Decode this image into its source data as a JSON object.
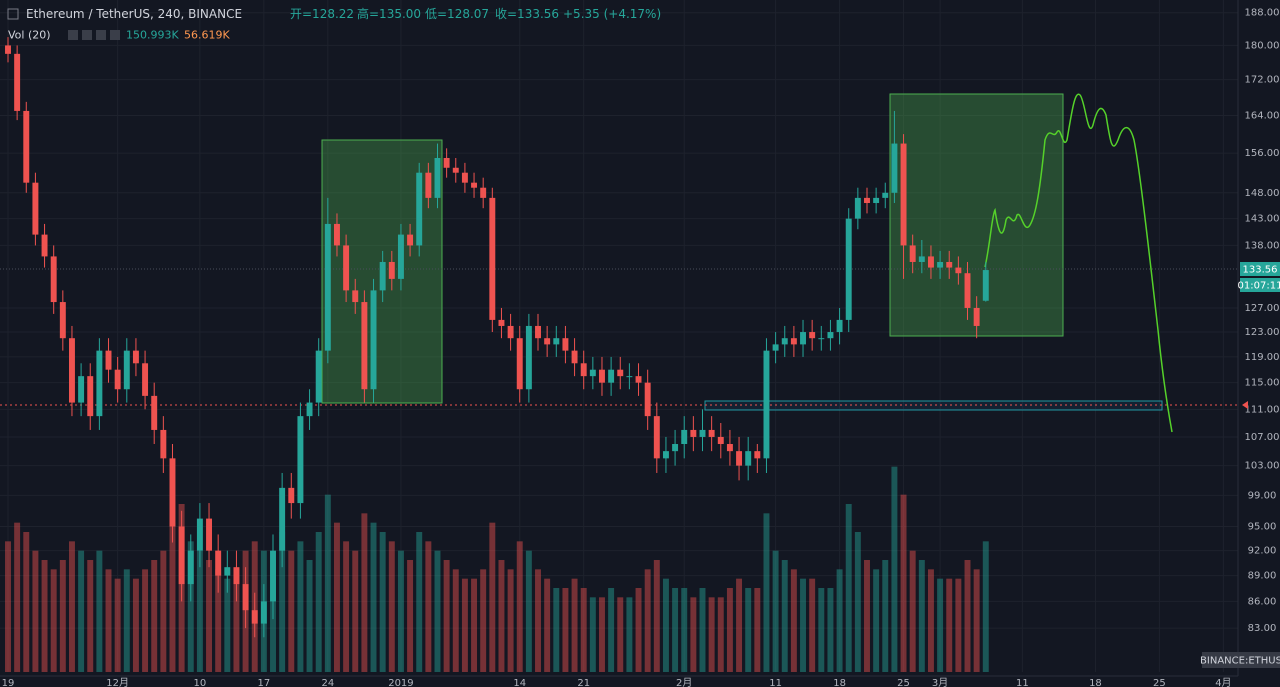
{
  "chart_data": {
    "type": "candlestick",
    "header": {
      "symbol": "Ethereum / TetherUS, 240, BINANCE",
      "open": "开=128.22",
      "high": "高=135.00",
      "low": "低=128.07",
      "close": "收=133.56",
      "change": "+5.35 (+4.17%)",
      "volume_label": "Vol (20)",
      "volume_value": "150.993K",
      "volume_ma": "56.619K",
      "countdown": "01:07:11",
      "exchange": "BINANCE:ETHUS"
    },
    "log_scale": true,
    "grid": true,
    "up_color": "#26a69a",
    "down_color": "#ef5350",
    "ylim": [
      78.3,
      191.2
    ],
    "yticks": [
      {
        "value": 188,
        "label": "188.00"
      },
      {
        "value": 180,
        "label": "180.00"
      },
      {
        "value": 172,
        "label": "172.00"
      },
      {
        "value": 164,
        "label": "164.00"
      },
      {
        "value": 156,
        "label": "156.00"
      },
      {
        "value": 148,
        "label": "148.00"
      },
      {
        "value": 143,
        "label": "143.00"
      },
      {
        "value": 138,
        "label": "138.00"
      },
      {
        "value": 127,
        "label": "127.00"
      },
      {
        "value": 123,
        "label": "123.00"
      },
      {
        "value": 119,
        "label": "119.00"
      },
      {
        "value": 115,
        "label": "115.00"
      },
      {
        "value": 111,
        "label": "111.00"
      },
      {
        "value": 107,
        "label": "107.00"
      },
      {
        "value": 103,
        "label": "103.00"
      },
      {
        "value": 99,
        "label": "99.00"
      },
      {
        "value": 95,
        "label": "95.00"
      },
      {
        "value": 92,
        "label": "92.00"
      },
      {
        "value": 89,
        "label": "89.00"
      },
      {
        "value": 86,
        "label": "86.00"
      },
      {
        "value": 83,
        "label": "83.00"
      }
    ],
    "xlim": [
      -0.875,
      134.6
    ],
    "xticks": [
      {
        "value": 0,
        "label": "19"
      },
      {
        "value": 12,
        "label": "12月"
      },
      {
        "value": 21,
        "label": "10"
      },
      {
        "value": 28,
        "label": "17"
      },
      {
        "value": 35,
        "label": "24"
      },
      {
        "value": 43,
        "label": "2019"
      },
      {
        "value": 56,
        "label": "14"
      },
      {
        "value": 63,
        "label": "21"
      },
      {
        "value": 74,
        "label": "2月"
      },
      {
        "value": 84,
        "label": "11"
      },
      {
        "value": 91,
        "label": "18"
      },
      {
        "value": 98,
        "label": "25"
      },
      {
        "value": 102,
        "label": "3月"
      },
      {
        "value": 111,
        "label": "11"
      },
      {
        "value": 119,
        "label": "18"
      },
      {
        "value": 126,
        "label": "25"
      },
      {
        "value": 133,
        "label": "4月"
      }
    ],
    "x": [
      0,
      1,
      2,
      3,
      4,
      5,
      6,
      7,
      8,
      9,
      10,
      11,
      12,
      13,
      14,
      15,
      16,
      17,
      18,
      19,
      20,
      21,
      22,
      23,
      24,
      25,
      26,
      27,
      28,
      29,
      30,
      31,
      32,
      33,
      34,
      35,
      36,
      37,
      38,
      39,
      40,
      41,
      42,
      43,
      44,
      45,
      46,
      47,
      48,
      49,
      50,
      51,
      52,
      53,
      54,
      55,
      56,
      57,
      58,
      59,
      60,
      61,
      62,
      63,
      64,
      65,
      66,
      67,
      68,
      69,
      70,
      71,
      72,
      73,
      74,
      75,
      76,
      77,
      78,
      79,
      80,
      81,
      82,
      83,
      84,
      85,
      86,
      87,
      88,
      89,
      90,
      91,
      92,
      93,
      94,
      95,
      96,
      97,
      98,
      99,
      100,
      101,
      102,
      103,
      104,
      105,
      106,
      107
    ],
    "open": [
      180,
      178,
      165,
      150,
      140,
      136,
      128,
      122,
      112,
      116,
      110,
      120,
      117,
      114,
      120,
      118,
      113,
      108,
      104,
      95,
      88,
      92,
      96,
      92,
      89,
      90,
      88,
      85,
      83.5,
      86,
      92,
      100,
      98,
      110,
      112,
      120,
      142,
      138,
      130,
      128,
      114,
      130,
      135,
      132,
      140,
      138,
      152,
      147,
      155,
      153,
      152,
      150,
      149,
      147,
      125,
      124,
      122,
      114,
      124,
      122,
      121,
      122,
      120,
      118,
      116,
      117,
      115,
      117,
      116,
      116,
      115,
      110,
      104,
      105,
      106,
      108,
      107,
      108,
      107,
      106,
      105,
      103,
      105,
      104,
      120,
      121,
      122,
      121,
      123,
      122,
      122,
      123,
      125,
      143,
      147,
      146,
      147,
      148,
      158,
      138,
      135,
      136,
      134,
      135,
      134,
      133,
      127,
      128.22
    ],
    "high": [
      182,
      180,
      167,
      152,
      142,
      138,
      130,
      124,
      118,
      118,
      122,
      122,
      119,
      122,
      122,
      120,
      115,
      110,
      106,
      97,
      94,
      98,
      98,
      94,
      92,
      92,
      90,
      87,
      88,
      94,
      102,
      102,
      112,
      114,
      122,
      147,
      144,
      140,
      132,
      130,
      132,
      137,
      137,
      142,
      142,
      154,
      154,
      158,
      157,
      155,
      154,
      152,
      151,
      149,
      127,
      126,
      124,
      126,
      126,
      124,
      124,
      124,
      122,
      120,
      119,
      119,
      119,
      119,
      118,
      118,
      117,
      112,
      107,
      108,
      110,
      110,
      111,
      110,
      109,
      108,
      107,
      107,
      106,
      122,
      123,
      124,
      124,
      125,
      125,
      124,
      125,
      127,
      145,
      149,
      149,
      149,
      150,
      165,
      160,
      140,
      139,
      138,
      137,
      137,
      136,
      135,
      129,
      135
    ],
    "low": [
      176,
      163,
      148,
      138,
      134,
      126,
      120,
      110,
      110,
      108,
      108,
      115,
      112,
      112,
      116,
      111,
      106,
      102,
      93,
      86,
      86,
      90,
      90,
      87,
      87,
      86,
      83,
      82,
      82,
      84,
      90,
      96,
      96,
      108,
      110,
      118,
      136,
      128,
      126,
      112,
      112,
      128,
      130,
      130,
      136,
      136,
      145,
      145,
      151,
      150,
      148,
      147,
      145,
      123,
      122,
      120,
      112,
      112,
      120,
      119,
      119,
      118,
      116,
      114,
      114,
      113,
      113,
      114,
      114,
      113,
      108,
      102,
      102,
      103,
      104,
      105,
      105,
      105,
      104,
      103,
      101,
      101,
      102,
      102,
      118,
      119,
      119,
      119,
      120,
      120,
      120,
      121,
      123,
      141,
      144,
      144,
      145,
      146,
      132,
      133,
      133,
      132,
      132,
      132,
      131,
      125,
      122,
      128.07
    ],
    "close": [
      178,
      165,
      150,
      140,
      136,
      128,
      122,
      112,
      116,
      110,
      120,
      117,
      114,
      120,
      118,
      113,
      108,
      104,
      95,
      88,
      92,
      96,
      92,
      89,
      90,
      88,
      85,
      83.5,
      86,
      92,
      100,
      98,
      110,
      112,
      120,
      142,
      138,
      130,
      128,
      114,
      130,
      135,
      132,
      140,
      138,
      152,
      147,
      155,
      153,
      152,
      150,
      149,
      147,
      125,
      124,
      122,
      114,
      124,
      122,
      121,
      122,
      120,
      118,
      116,
      117,
      115,
      117,
      116,
      116,
      115,
      110,
      104,
      105,
      106,
      108,
      107,
      108,
      107,
      106,
      105,
      103,
      105,
      104,
      120,
      121,
      122,
      121,
      123,
      122,
      122,
      123,
      125,
      143,
      147,
      146,
      147,
      148,
      158,
      138,
      135,
      136,
      134,
      135,
      134,
      133,
      127,
      124,
      133.56
    ],
    "volume": [
      700,
      800,
      750,
      650,
      600,
      550,
      600,
      700,
      650,
      600,
      650,
      550,
      500,
      550,
      500,
      550,
      600,
      650,
      800,
      900,
      700,
      650,
      600,
      550,
      500,
      550,
      650,
      700,
      650,
      600,
      750,
      650,
      700,
      600,
      750,
      950,
      800,
      700,
      650,
      850,
      800,
      750,
      700,
      650,
      600,
      750,
      700,
      650,
      600,
      550,
      500,
      500,
      550,
      800,
      600,
      550,
      700,
      650,
      550,
      500,
      450,
      450,
      500,
      450,
      400,
      400,
      450,
      400,
      400,
      450,
      550,
      600,
      500,
      450,
      450,
      400,
      450,
      400,
      400,
      450,
      500,
      450,
      450,
      850,
      650,
      600,
      550,
      500,
      500,
      450,
      450,
      550,
      900,
      750,
      600,
      550,
      600,
      1100,
      950,
      650,
      600,
      550,
      500,
      500,
      500,
      600,
      550,
      700
    ],
    "volume_ylim": [
      0,
      3600
    ]
  }
}
